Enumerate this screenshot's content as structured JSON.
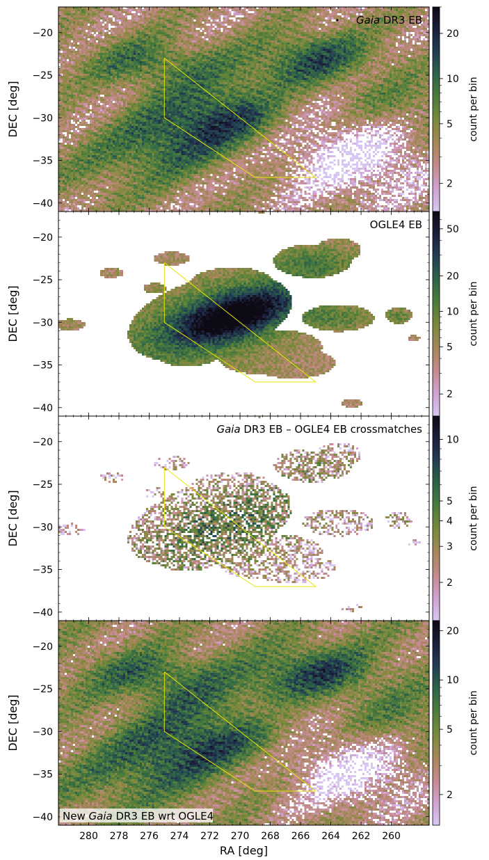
{
  "colormap": [
    "#d8c7f2",
    "#cfa2d2",
    "#c48a8c",
    "#a6875a",
    "#7a8a3c",
    "#4d7d3c",
    "#2f6547",
    "#223f54",
    "#1c1f3c",
    "#0e0a15"
  ],
  "polygon_color": "#e6e600",
  "chart_data": [
    {
      "type": "heatmap",
      "title": "Gaia DR3 EB",
      "title_italic": "Gaia",
      "title_rest": " DR3 EB",
      "title_position": "top-right",
      "legend_marker": true,
      "xlim": [
        282,
        257.5
      ],
      "ylim": [
        -41,
        -17
      ],
      "yticks": [
        -20,
        -25,
        -30,
        -35,
        -40
      ],
      "ylabel": "DEC [deg]",
      "colorbar": {
        "label": "count per bin",
        "scale": "log",
        "range": [
          1.3,
          30
        ],
        "ticks": [
          2,
          5,
          10,
          20
        ]
      },
      "density": "gaia",
      "polygon": [
        [
          275,
          -23
        ],
        [
          275,
          -30
        ],
        [
          269,
          -37
        ],
        [
          265,
          -37
        ],
        [
          275,
          -23
        ]
      ]
    },
    {
      "type": "heatmap",
      "title": "OGLE4 EB",
      "title_italic": "",
      "title_rest": "OGLE4 EB",
      "title_position": "top-right",
      "xlim": [
        282,
        257.5
      ],
      "ylim": [
        -41,
        -17
      ],
      "yticks": [
        -20,
        -25,
        -30,
        -35,
        -40
      ],
      "ylabel": "DEC [deg]",
      "colorbar": {
        "label": "count per bin",
        "scale": "log",
        "range": [
          1.3,
          70
        ],
        "ticks": [
          2,
          5,
          10,
          20,
          50
        ]
      },
      "density": "ogle",
      "polygon": [
        [
          275,
          -23
        ],
        [
          275,
          -30
        ],
        [
          269,
          -37
        ],
        [
          265,
          -37
        ],
        [
          275,
          -23
        ]
      ]
    },
    {
      "type": "heatmap",
      "title": "Gaia DR3 EB – OGLE4 EB crossmatches",
      "title_italic": "Gaia",
      "title_rest": " DR3 EB – OGLE4 EB crossmatches",
      "title_position": "top-right",
      "xlim": [
        282,
        257.5
      ],
      "ylim": [
        -41,
        -17
      ],
      "yticks": [
        -20,
        -25,
        -30,
        -35,
        -40
      ],
      "ylabel": "DEC [deg]",
      "colorbar": {
        "label": "count per bin",
        "scale": "log",
        "range": [
          1.3,
          13
        ],
        "ticks": [
          2,
          3,
          4,
          5,
          10
        ]
      },
      "density": "cross",
      "polygon": [
        [
          275,
          -23
        ],
        [
          275,
          -30
        ],
        [
          269,
          -37
        ],
        [
          265,
          -37
        ],
        [
          275,
          -23
        ]
      ]
    },
    {
      "type": "heatmap",
      "title": "New Gaia DR3 EB wrt OGLE4",
      "title_italic": "Gaia",
      "title_pre": "New ",
      "title_rest": " DR3 EB wrt OGLE4",
      "title_position": "bottom-left",
      "xlim": [
        282,
        257.5
      ],
      "ylim": [
        -41,
        -17
      ],
      "yticks": [
        -20,
        -25,
        -30,
        -35,
        -40
      ],
      "xticks": [
        280,
        278,
        276,
        274,
        272,
        270,
        268,
        266,
        264,
        262,
        260
      ],
      "xlabel": "RA [deg]",
      "ylabel": "DEC [deg]",
      "colorbar": {
        "label": "count per bin",
        "scale": "log",
        "range": [
          1.3,
          23
        ],
        "ticks": [
          2,
          5,
          10,
          20
        ]
      },
      "density": "newgaia",
      "polygon": [
        [
          275,
          -23
        ],
        [
          275,
          -30
        ],
        [
          269,
          -37
        ],
        [
          265,
          -37
        ],
        [
          275,
          -23
        ]
      ]
    }
  ]
}
